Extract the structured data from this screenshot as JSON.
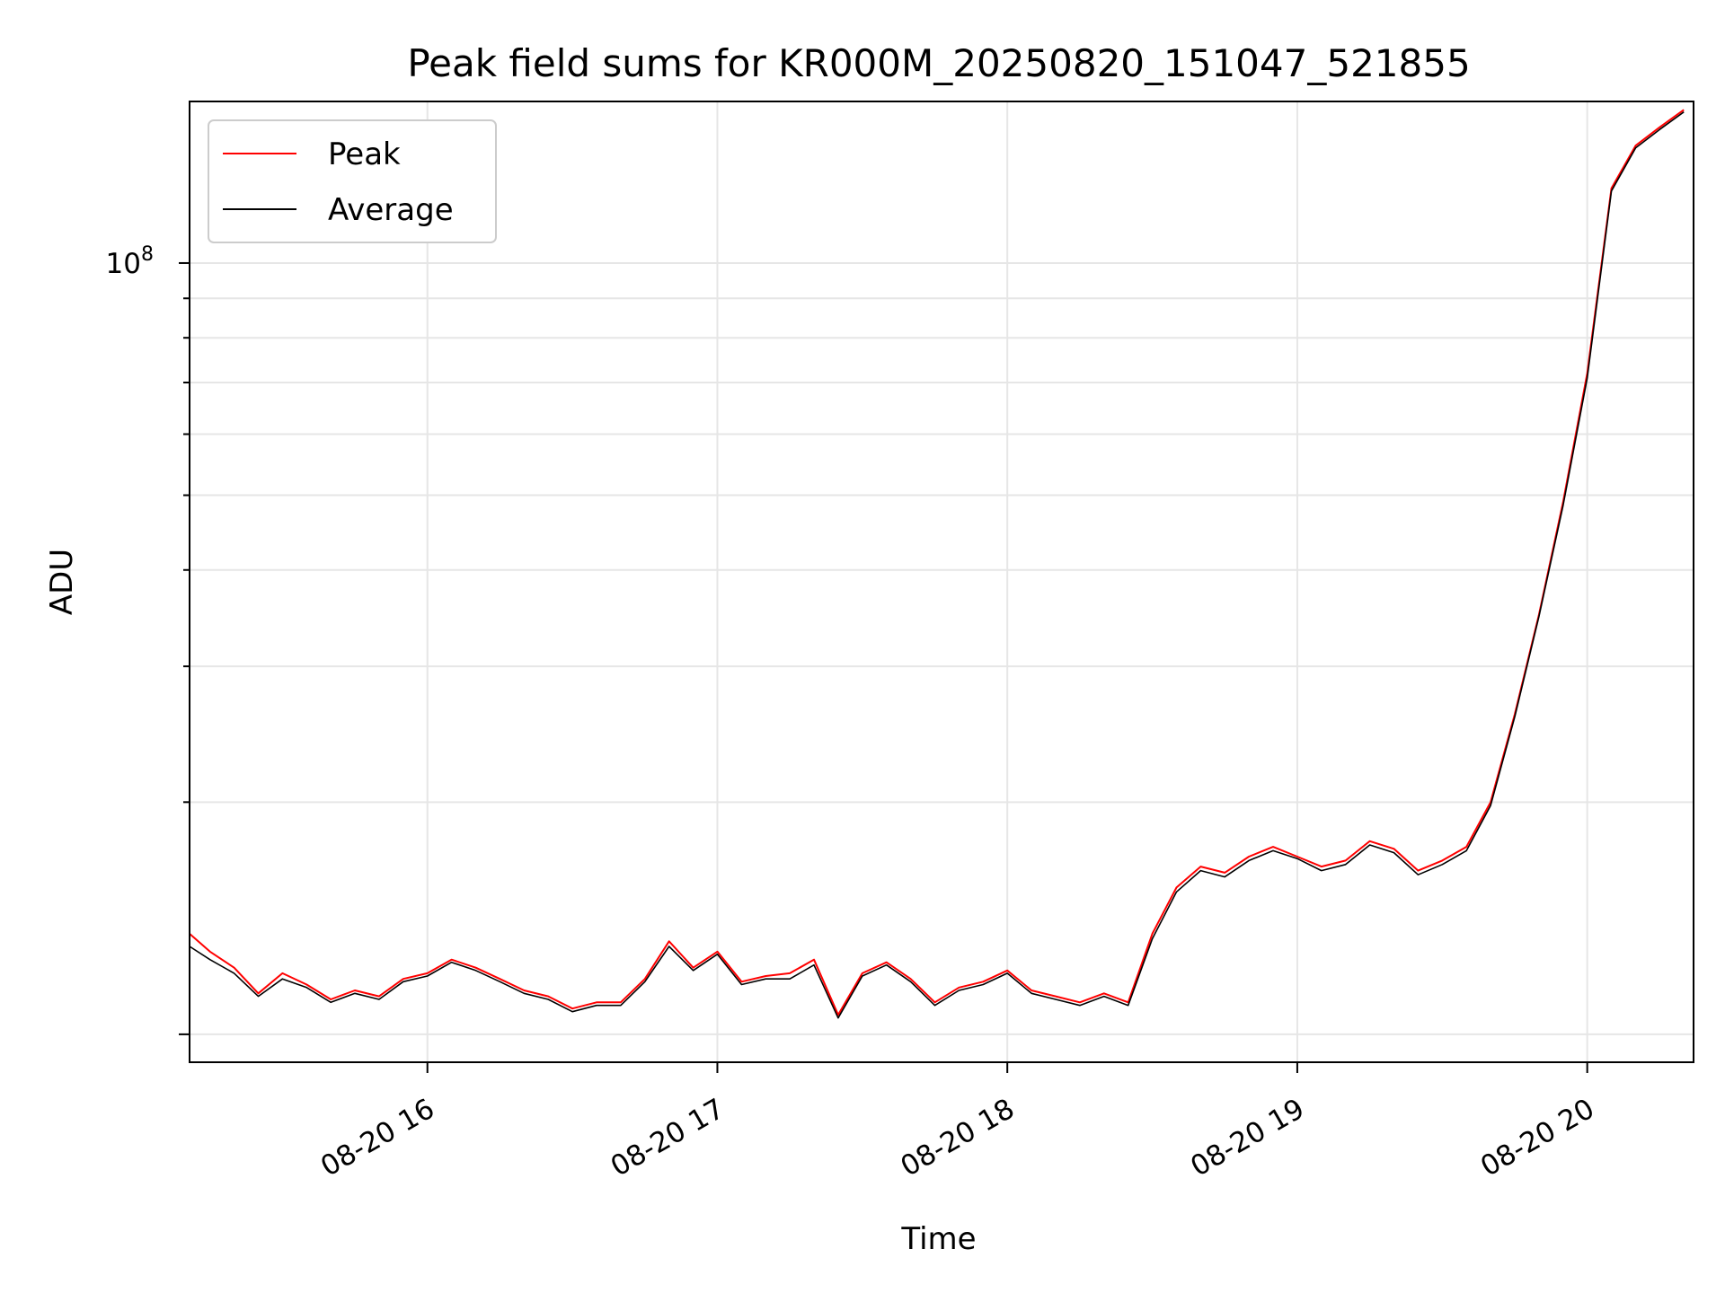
{
  "chart_data": {
    "type": "line",
    "title": "Peak field sums for KR000M_20250820_151047_521855",
    "xlabel": "Time",
    "ylabel": "ADU",
    "y_scale": "log",
    "x_tick_labels": [
      "08-20 16",
      "08-20 17",
      "08-20 18",
      "08-20 19",
      "08-20 20"
    ],
    "y_tick_labels": [
      {
        "base": "10",
        "exp": "8"
      }
    ],
    "x_range": [
      "2025-08-20 15:10:47",
      "2025-08-20 20:22:00"
    ],
    "ylim": [
      9200000.0,
      162000000.0
    ],
    "grid": true,
    "legend_position": "top-left",
    "legend": [
      "Peak",
      "Average"
    ],
    "series": [
      {
        "name": "Peak",
        "color": "#ff0000",
        "x": [
          "15:10",
          "15:15",
          "15:20",
          "15:25",
          "15:30",
          "15:35",
          "15:40",
          "15:45",
          "15:50",
          "15:55",
          "16:00",
          "16:05",
          "16:10",
          "16:15",
          "16:20",
          "16:25",
          "16:30",
          "16:35",
          "16:40",
          "16:45",
          "16:50",
          "16:55",
          "17:00",
          "17:05",
          "17:10",
          "17:15",
          "17:20",
          "17:25",
          "17:30",
          "17:35",
          "17:40",
          "17:45",
          "17:50",
          "17:55",
          "18:00",
          "18:05",
          "18:10",
          "18:15",
          "18:20",
          "18:25",
          "18:30",
          "18:35",
          "18:40",
          "18:45",
          "18:50",
          "18:55",
          "19:00",
          "19:05",
          "19:10",
          "19:15",
          "19:20",
          "19:25",
          "19:30",
          "19:35",
          "19:40",
          "19:45",
          "19:50",
          "19:55",
          "20:00",
          "20:05",
          "20:10",
          "20:15",
          "20:20"
        ],
        "y": [
          13500000.0,
          12800000.0,
          12200000.0,
          11300000.0,
          12000000.0,
          11600000.0,
          11100000.0,
          11400000.0,
          11200000.0,
          11800000.0,
          12000000.0,
          12500000.0,
          12200000.0,
          11800000.0,
          11400000.0,
          11200000.0,
          10800000.0,
          11000000.0,
          11000000.0,
          11800000.0,
          13200000.0,
          12200000.0,
          12800000.0,
          11700000.0,
          11900000.0,
          12000000.0,
          12500000.0,
          10600000.0,
          12000000.0,
          12400000.0,
          11800000.0,
          11000000.0,
          11500000.0,
          11700000.0,
          12100000.0,
          11400000.0,
          11200000.0,
          11000000.0,
          11300000.0,
          11000000.0,
          13500000.0,
          15500000.0,
          16500000.0,
          16200000.0,
          17000000.0,
          17500000.0,
          17000000.0,
          16500000.0,
          16800000.0,
          17800000.0,
          17400000.0,
          16300000.0,
          16800000.0,
          17500000.0,
          20000000.0,
          26000000.0,
          35000000.0,
          49000000.0,
          72000000.0,
          125000000.0,
          142000000.0,
          150000000.0,
          158000000.0
        ]
      },
      {
        "name": "Average",
        "color": "#000000",
        "x": [
          "15:10",
          "15:15",
          "15:20",
          "15:25",
          "15:30",
          "15:35",
          "15:40",
          "15:45",
          "15:50",
          "15:55",
          "16:00",
          "16:05",
          "16:10",
          "16:15",
          "16:20",
          "16:25",
          "16:30",
          "16:35",
          "16:40",
          "16:45",
          "16:50",
          "16:55",
          "17:00",
          "17:05",
          "17:10",
          "17:15",
          "17:20",
          "17:25",
          "17:30",
          "17:35",
          "17:40",
          "17:45",
          "17:50",
          "17:55",
          "18:00",
          "18:05",
          "18:10",
          "18:15",
          "18:20",
          "18:25",
          "18:30",
          "18:35",
          "18:40",
          "18:45",
          "18:50",
          "18:55",
          "19:00",
          "19:05",
          "19:10",
          "19:15",
          "19:20",
          "19:25",
          "19:30",
          "19:35",
          "19:40",
          "19:45",
          "19:50",
          "19:55",
          "20:00",
          "20:05",
          "20:10",
          "20:15",
          "20:20"
        ],
        "y": [
          13000000.0,
          12500000.0,
          12000000.0,
          11200000.0,
          11800000.0,
          11500000.0,
          11000000.0,
          11300000.0,
          11100000.0,
          11700000.0,
          11900000.0,
          12400000.0,
          12100000.0,
          11700000.0,
          11300000.0,
          11100000.0,
          10700000.0,
          10900000.0,
          10900000.0,
          11700000.0,
          13000000.0,
          12100000.0,
          12700000.0,
          11600000.0,
          11800000.0,
          11800000.0,
          12300000.0,
          10500000.0,
          11900000.0,
          12300000.0,
          11700000.0,
          10900000.0,
          11400000.0,
          11600000.0,
          12000000.0,
          11300000.0,
          11100000.0,
          10900000.0,
          11200000.0,
          10900000.0,
          13300000.0,
          15300000.0,
          16300000.0,
          16000000.0,
          16800000.0,
          17300000.0,
          16900000.0,
          16300000.0,
          16600000.0,
          17600000.0,
          17200000.0,
          16100000.0,
          16600000.0,
          17300000.0,
          19800000.0,
          25800000.0,
          34800000.0,
          48500000.0,
          71000000.0,
          124000000.0,
          141000000.0,
          149000000.0,
          157000000.0
        ]
      }
    ]
  }
}
